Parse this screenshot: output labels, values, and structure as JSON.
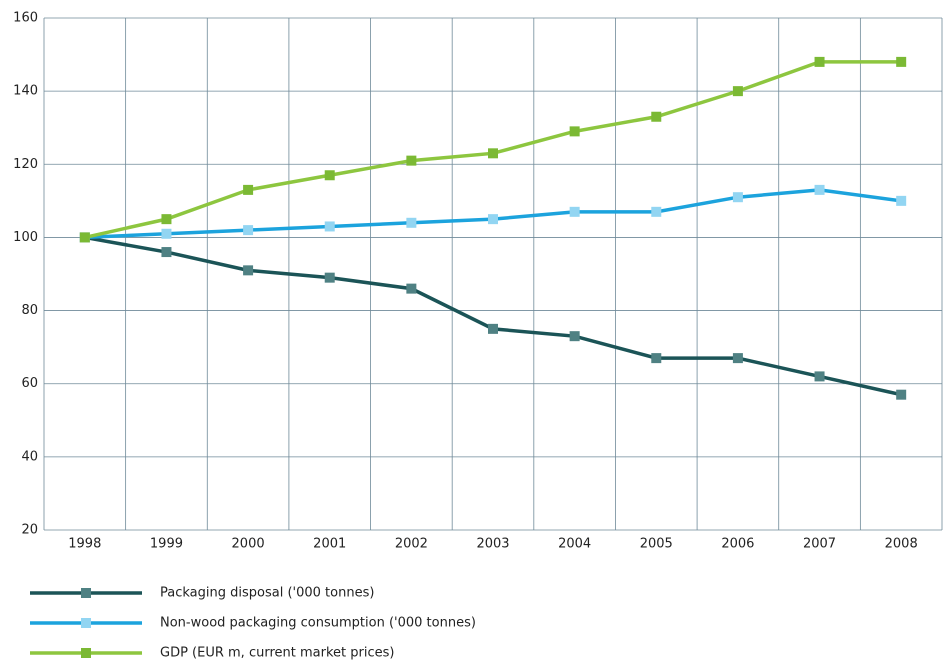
{
  "chart_data": {
    "type": "line",
    "categories": [
      "1998",
      "1999",
      "2000",
      "2001",
      "2002",
      "2003",
      "2004",
      "2005",
      "2006",
      "2007",
      "2008"
    ],
    "series": [
      {
        "name": "Packaging disposal ('000 tonnes)",
        "color": "#1b5457",
        "marker_color": "#4f8183",
        "values": [
          100,
          96,
          91,
          89,
          86,
          75,
          73,
          67,
          67,
          62,
          57
        ]
      },
      {
        "name": "Non-wood packaging consumption ('000 tonnes)",
        "color": "#1ca3dd",
        "marker_color": "#92d5f2",
        "values": [
          100,
          101,
          102,
          103,
          104,
          105,
          107,
          107,
          111,
          113,
          110
        ]
      },
      {
        "name": "GDP (EUR m, current market prices)",
        "color": "#8dc63f",
        "marker_color": "#7bb934",
        "values": [
          100,
          105,
          113,
          117,
          121,
          123,
          129,
          133,
          140,
          148,
          148
        ]
      }
    ],
    "ylim": [
      20,
      160
    ],
    "yticks": [
      20,
      40,
      60,
      80,
      100,
      120,
      140,
      160
    ],
    "grid": true,
    "legend": "bottom"
  }
}
